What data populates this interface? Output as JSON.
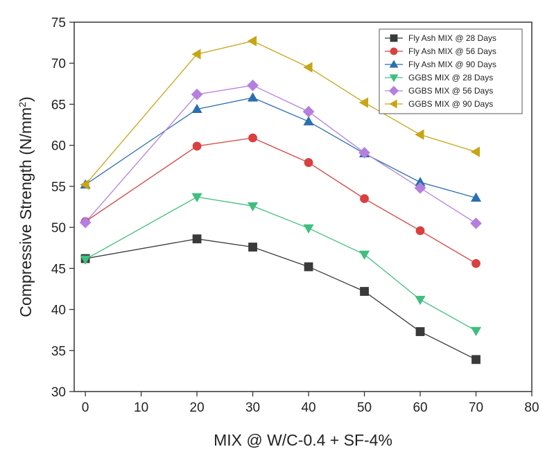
{
  "chart_data": {
    "type": "line",
    "title": "",
    "xlabel": "MIX @ W/C-0.4 + SF-4%",
    "ylabel": "Compressive Strength (N/mm",
    "ylabel_superscript": "2",
    "ylabel_suffix": ")",
    "xlim": [
      -2,
      80
    ],
    "ylim": [
      30,
      75
    ],
    "x_ticks": [
      0,
      10,
      20,
      30,
      40,
      50,
      60,
      70,
      80
    ],
    "y_ticks": [
      30,
      35,
      40,
      45,
      50,
      55,
      60,
      65,
      70,
      75
    ],
    "x": [
      0,
      20,
      30,
      40,
      50,
      60,
      70
    ],
    "grid": false,
    "legend_position": "top-right",
    "series": [
      {
        "name": "Fly Ash MIX @ 28 Days",
        "marker": "square",
        "color": "#3a3a3a",
        "values": [
          46.2,
          48.6,
          47.6,
          45.2,
          42.2,
          37.3,
          33.9
        ]
      },
      {
        "name": "Fly Ash MIX @ 56 Days",
        "marker": "circle",
        "color": "#d94040",
        "values": [
          50.7,
          59.9,
          60.9,
          57.9,
          53.5,
          49.6,
          45.6
        ]
      },
      {
        "name": "Fly Ash MIX @ 90 Days",
        "marker": "triangle-up",
        "color": "#2a6fb0",
        "values": [
          55.2,
          64.4,
          65.8,
          62.9,
          59.0,
          55.5,
          53.6
        ]
      },
      {
        "name": "GGBS MIX @ 28 Days",
        "marker": "triangle-down",
        "color": "#3fbf7f",
        "values": [
          46.1,
          53.7,
          52.6,
          49.9,
          46.7,
          41.2,
          37.4
        ]
      },
      {
        "name": "GGBS MIX @ 56 Days",
        "marker": "diamond",
        "color": "#b57fe0",
        "values": [
          50.6,
          66.2,
          67.3,
          64.1,
          59.1,
          54.8,
          50.5
        ]
      },
      {
        "name": "GGBS MIX @ 90 Days",
        "marker": "triangle-left",
        "color": "#c8a516",
        "values": [
          55.2,
          71.1,
          72.7,
          69.5,
          65.2,
          61.3,
          59.2
        ]
      }
    ]
  }
}
